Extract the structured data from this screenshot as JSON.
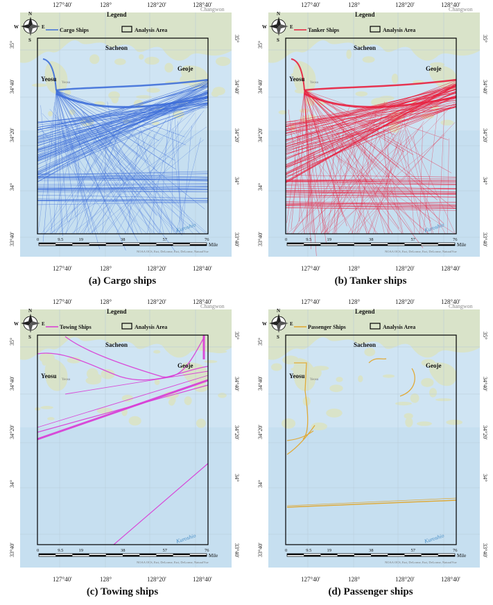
{
  "panels": [
    {
      "id": "a",
      "caption": "(a) Cargo ships",
      "legend_series": "Cargo Ships",
      "color": "#3f6fd9",
      "density": "heavy"
    },
    {
      "id": "b",
      "caption": "(b) Tanker ships",
      "legend_series": "Tanker Ships",
      "color": "#e8203f",
      "density": "heavy"
    },
    {
      "id": "c",
      "caption": "(c) Towing ships",
      "legend_series": "Towing Ships",
      "color": "#d93ad6",
      "density": "sparse"
    },
    {
      "id": "d",
      "caption": "(d) Passenger ships",
      "legend_series": "Passenger Ships",
      "color": "#e0a830",
      "density": "few"
    }
  ],
  "legend": {
    "title": "Legend",
    "analysis_area": "Analysis Area"
  },
  "places": {
    "sacheon": "Sacheon",
    "geoje": "Geoje",
    "yeosu": "Yeosu",
    "changwon": "Changwon",
    "yeosu_small": "Yeosu"
  },
  "axes": {
    "lon_ticks": [
      "127°40'",
      "128°",
      "128°20'",
      "128°40'"
    ],
    "lat_ticks": [
      "35°",
      "34°40'",
      "34°20'",
      "34°",
      "33°40'"
    ]
  },
  "compass": {
    "n": "N",
    "s": "S",
    "e": "E",
    "w": "W"
  },
  "scale_bar": {
    "ticks": [
      "0",
      "9.5",
      "19",
      "38",
      "57",
      "76"
    ],
    "unit": "Mile"
  },
  "attribution": "NOAA OCS, Esri, DeLorme, Esri, DeLorme, NaturalVue",
  "current_label": "Kuroshio"
}
